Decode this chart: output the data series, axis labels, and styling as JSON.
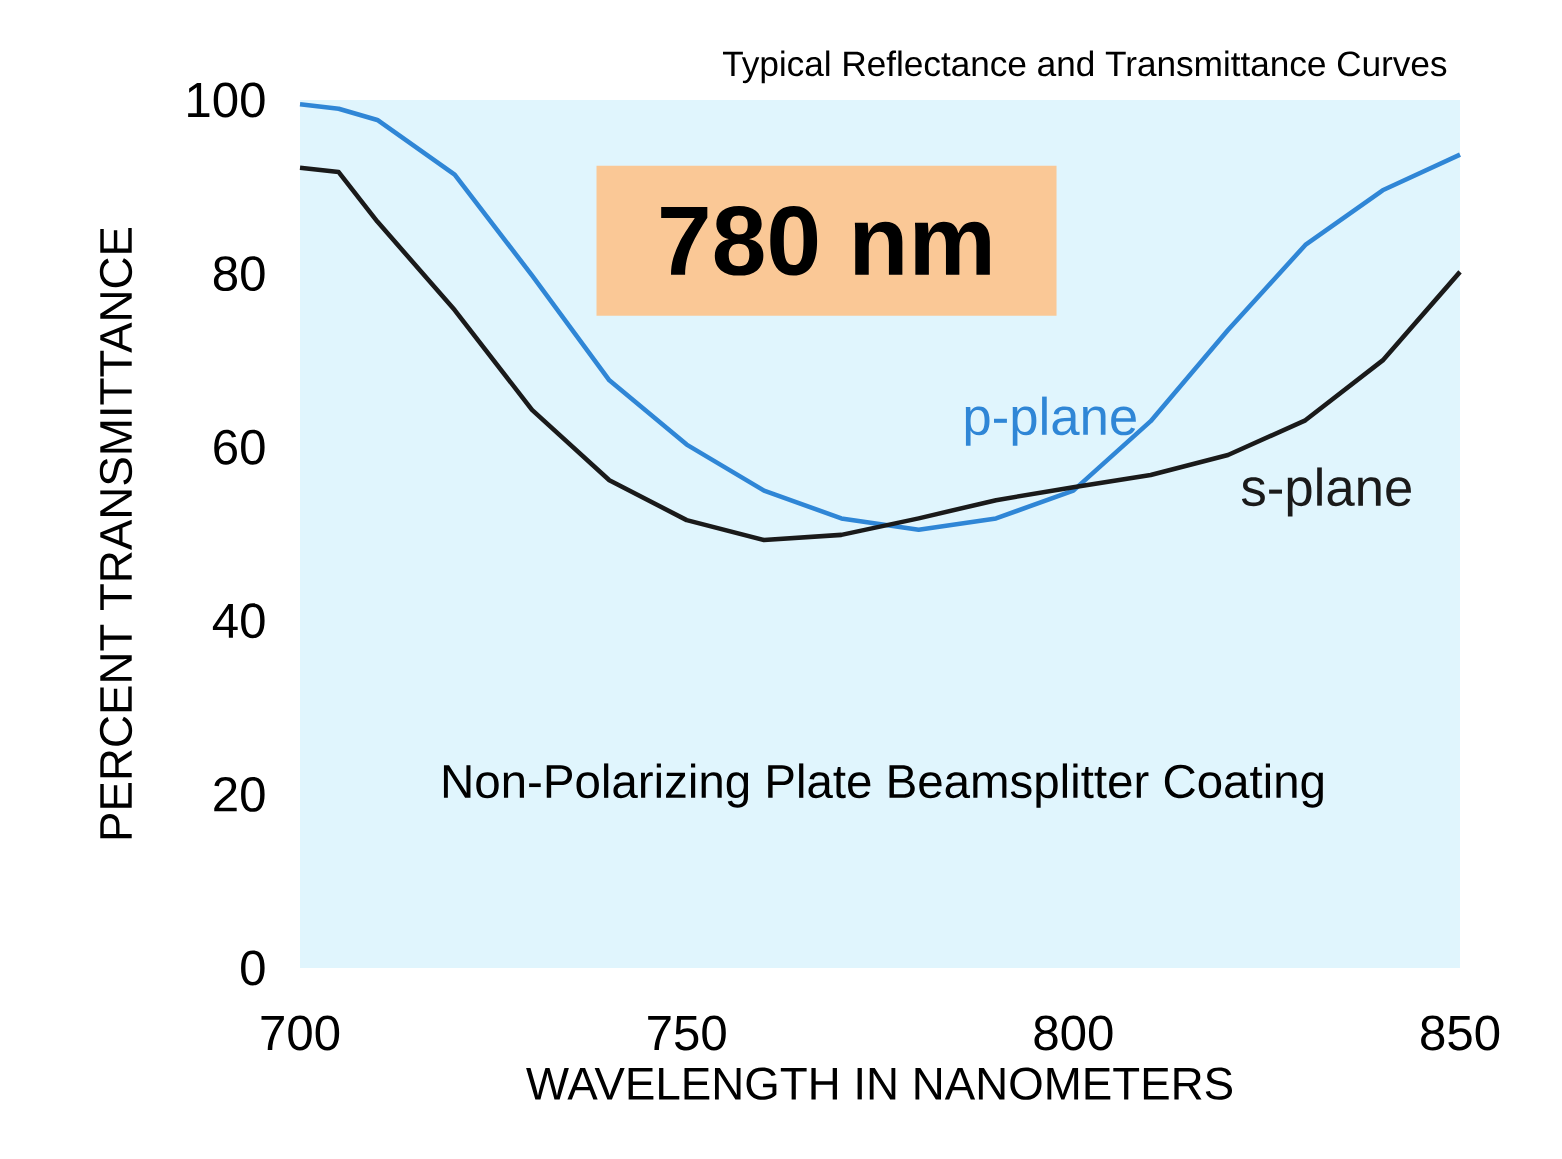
{
  "chart_data": {
    "type": "line",
    "title": "Typical Reflectance and Transmittance Curves",
    "xlabel": "WAVELENGTH IN NANOMETERS",
    "ylabel": "PERCENT TRANSMITTANCE",
    "annotations": [
      "780 nm",
      "Non-Polarizing Plate Beamsplitter Coating"
    ],
    "x": [
      700,
      705,
      710,
      720,
      730,
      740,
      750,
      760,
      770,
      780,
      790,
      800,
      810,
      820,
      830,
      840,
      850
    ],
    "series": [
      {
        "name": "p-plane",
        "color": "#2f86d6",
        "values": [
          99.5,
          99,
          97.7,
          91.4,
          79.8,
          67.7,
          60.3,
          55,
          51.8,
          50.5,
          51.8,
          55,
          63,
          73.5,
          83.3,
          89.6,
          93.7
        ]
      },
      {
        "name": "s-plane",
        "color": "#1a1a1a",
        "values": [
          92.2,
          91.7,
          86,
          75.8,
          64.3,
          56.2,
          51.6,
          49.3,
          49.9,
          51.8,
          53.9,
          55.4,
          56.8,
          59.1,
          63.1,
          70,
          80.2
        ]
      }
    ],
    "xlim": [
      700,
      850
    ],
    "ylim": [
      0,
      100
    ],
    "xticks": [
      700,
      750,
      800,
      850
    ],
    "yticks": [
      0,
      20,
      40,
      60,
      80,
      100
    ],
    "grid": false,
    "marker": "none",
    "line_style": "solid"
  }
}
